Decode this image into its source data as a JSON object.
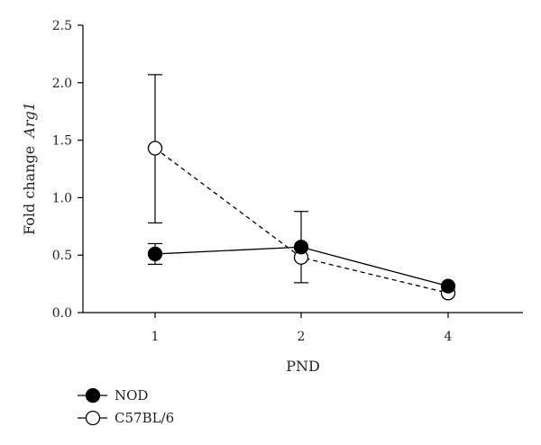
{
  "chart_data": {
    "type": "line",
    "xlabel": "PND",
    "ylabel": "Fold change",
    "ylabel_italic": "Arg1",
    "categories": [
      "1",
      "2",
      "4"
    ],
    "yticks": [
      "0.0",
      "0.5",
      "1.0",
      "1.5",
      "2.0",
      "2.5"
    ],
    "ylim": [
      0,
      2.5
    ],
    "grid": false,
    "legend_position": "bottom-left",
    "series": [
      {
        "name": "NOD",
        "marker": "filled-circle",
        "line": "solid",
        "color": "#000000",
        "values": [
          0.51,
          0.57,
          0.23
        ],
        "err_low": [
          0.42,
          null,
          null
        ],
        "err_high": [
          0.6,
          null,
          null
        ]
      },
      {
        "name": "C57BL/6",
        "marker": "open-circle",
        "line": "dashed",
        "color": "#000000",
        "values": [
          1.43,
          0.48,
          0.17
        ],
        "err_low": [
          0.78,
          0.26,
          null
        ],
        "err_high": [
          2.07,
          0.88,
          null
        ]
      }
    ]
  }
}
